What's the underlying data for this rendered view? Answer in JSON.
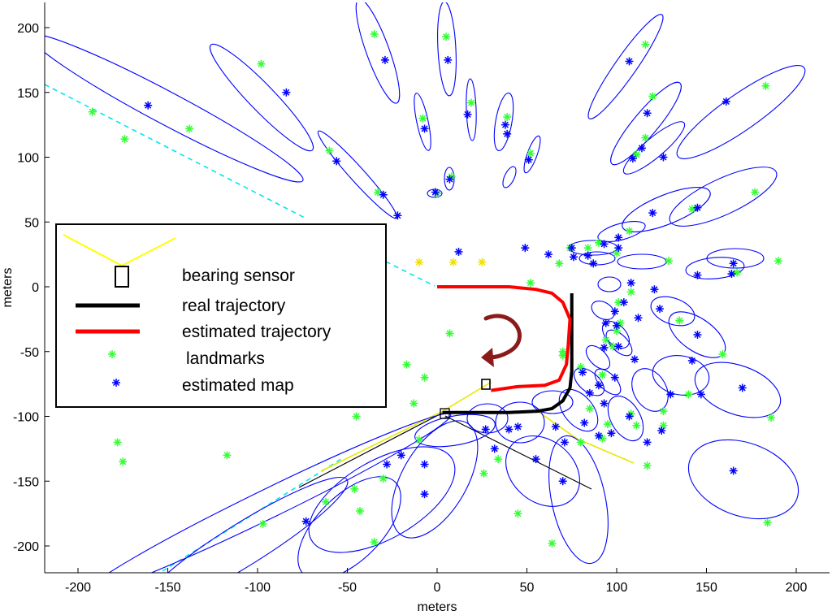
{
  "chart_data": {
    "type": "scatter",
    "title": "",
    "xlabel": "meters",
    "ylabel": "meters",
    "xlim": [
      -220,
      220
    ],
    "ylim": [
      -222,
      222
    ],
    "xticks": [
      -200,
      -150,
      -100,
      -50,
      0,
      50,
      100,
      150,
      200
    ],
    "yticks": [
      200,
      150,
      100,
      50,
      0,
      -50,
      -100,
      -150,
      -200
    ],
    "legend": {
      "placement": "left",
      "entries": [
        {
          "label": "bearing sensor",
          "color": "#000000",
          "accent": "#ffff00"
        },
        {
          "label": "real trajectory",
          "color": "#000000"
        },
        {
          "label": "estimated trajectory",
          "color": "#ff0000"
        },
        {
          "label": "landmarks",
          "color": "#33ff33"
        },
        {
          "label": "estimated map",
          "color": "#0000ff"
        }
      ]
    },
    "series": [
      {
        "name": "landmarks",
        "marker": "*",
        "color": "#33ff33",
        "points": [
          [
            -192,
            135
          ],
          [
            -174,
            114
          ],
          [
            -138,
            122
          ],
          [
            -98,
            172
          ],
          [
            -60,
            105
          ],
          [
            -33,
            73
          ],
          [
            -35,
            195
          ],
          [
            5,
            193
          ],
          [
            19,
            142
          ],
          [
            39,
            131
          ],
          [
            52,
            103
          ],
          [
            -8,
            130
          ],
          [
            8,
            85
          ],
          [
            0,
            72
          ],
          [
            52,
            3
          ],
          [
            7,
            -36
          ],
          [
            -17,
            -60
          ],
          [
            -7,
            -70
          ],
          [
            -13,
            -90
          ],
          [
            -45,
            -100
          ],
          [
            -10,
            -118
          ],
          [
            -117,
            -130
          ],
          [
            -178,
            -120
          ],
          [
            -175,
            -135
          ],
          [
            -97,
            -183
          ],
          [
            -62,
            -166
          ],
          [
            -46,
            -156
          ],
          [
            -43,
            -173
          ],
          [
            -35,
            -197
          ],
          [
            -30,
            -148
          ],
          [
            34,
            -133
          ],
          [
            26,
            -144
          ],
          [
            45,
            -175
          ],
          [
            64,
            -198
          ],
          [
            80,
            -120
          ],
          [
            85,
            -94
          ],
          [
            92,
            -117
          ],
          [
            95,
            -106
          ],
          [
            108,
            -98
          ],
          [
            111,
            -107
          ],
          [
            117,
            -138
          ],
          [
            126,
            -96
          ],
          [
            126,
            -107
          ],
          [
            140,
            -83
          ],
          [
            159,
            -52
          ],
          [
            184,
            -182
          ],
          [
            186,
            -101
          ],
          [
            190,
            20
          ],
          [
            167,
            11
          ],
          [
            177,
            73
          ],
          [
            142,
            60
          ],
          [
            129,
            20
          ],
          [
            108,
            -4
          ],
          [
            101,
            -12
          ],
          [
            135,
            -26
          ],
          [
            98,
            -46
          ],
          [
            94,
            -41
          ],
          [
            92,
            -68
          ],
          [
            80,
            -62
          ],
          [
            100,
            -34
          ],
          [
            102,
            -28
          ],
          [
            107,
            43
          ],
          [
            90,
            34
          ],
          [
            84,
            30
          ],
          [
            74,
            30
          ],
          [
            68,
            18
          ],
          [
            70,
            -53
          ],
          [
            70,
            -50
          ],
          [
            100,
            26
          ],
          [
            116,
            187
          ],
          [
            183,
            155
          ],
          [
            120,
            147
          ],
          [
            116,
            115
          ],
          [
            111,
            102
          ]
        ]
      },
      {
        "name": "estimated map",
        "marker": "*",
        "color": "#0000ff",
        "points": [
          [
            -161,
            140
          ],
          [
            -84,
            150
          ],
          [
            -56,
            97
          ],
          [
            -30,
            71
          ],
          [
            -22,
            55
          ],
          [
            -29,
            175
          ],
          [
            6,
            175
          ],
          [
            17,
            133
          ],
          [
            38,
            125
          ],
          [
            39,
            118
          ],
          [
            51,
            98
          ],
          [
            -7,
            122
          ],
          [
            7,
            83
          ],
          [
            -1,
            73
          ],
          [
            49,
            30
          ],
          [
            12,
            27
          ],
          [
            -20,
            -130
          ],
          [
            -7,
            -137
          ],
          [
            -7,
            -160
          ],
          [
            -73,
            -181
          ],
          [
            -28,
            -137
          ],
          [
            27,
            -110
          ],
          [
            32,
            -125
          ],
          [
            55,
            -133
          ],
          [
            45,
            -108
          ],
          [
            66,
            -108
          ],
          [
            40,
            -110
          ],
          [
            71,
            -120
          ],
          [
            70,
            -150
          ],
          [
            82,
            -105
          ],
          [
            90,
            -115
          ],
          [
            97,
            -113
          ],
          [
            107,
            -100
          ],
          [
            117,
            -120
          ],
          [
            125,
            -111
          ],
          [
            130,
            -83
          ],
          [
            142,
            -57
          ],
          [
            170,
            -78
          ],
          [
            165,
            -142
          ],
          [
            147,
            -83
          ],
          [
            145,
            -37
          ],
          [
            124,
            -17
          ],
          [
            94,
            -28
          ],
          [
            93,
            -47
          ],
          [
            90,
            -76
          ],
          [
            81,
            -66
          ],
          [
            85,
            -82
          ],
          [
            93,
            -90
          ],
          [
            99,
            -19
          ],
          [
            100,
            -30
          ],
          [
            110,
            -56
          ],
          [
            99,
            -70
          ],
          [
            101,
            -46
          ],
          [
            121,
            -2
          ],
          [
            164,
            10
          ],
          [
            165,
            18
          ],
          [
            145,
            9
          ],
          [
            145,
            61
          ],
          [
            120,
            57
          ],
          [
            101,
            30
          ],
          [
            93,
            33
          ],
          [
            75,
            30
          ],
          [
            84,
            24
          ],
          [
            87,
            18
          ],
          [
            104,
            -12
          ],
          [
            112,
            -24
          ],
          [
            108,
            3
          ],
          [
            101,
            38
          ],
          [
            107,
            174
          ],
          [
            161,
            143
          ],
          [
            117,
            134
          ],
          [
            126,
            100
          ],
          [
            114,
            107
          ],
          [
            109,
            99
          ],
          [
            76,
            23
          ],
          [
            62,
            25
          ]
        ]
      },
      {
        "name": "real trajectory",
        "color": "#000000",
        "points": [
          [
            3,
            -97
          ],
          [
            20,
            -97
          ],
          [
            40,
            -97
          ],
          [
            56,
            -96
          ],
          [
            64,
            -94
          ],
          [
            70,
            -88
          ],
          [
            74,
            -78
          ],
          [
            75,
            -65
          ],
          [
            75,
            -40
          ],
          [
            75,
            -15
          ],
          [
            75,
            -5
          ]
        ]
      },
      {
        "name": "estimated trajectory",
        "color": "#ff0000",
        "points": [
          [
            0,
            0
          ],
          [
            20,
            0
          ],
          [
            40,
            0
          ],
          [
            55,
            -2
          ],
          [
            64,
            -5
          ],
          [
            70,
            -12
          ],
          [
            74,
            -25
          ],
          [
            73,
            -45
          ],
          [
            72,
            -60
          ],
          [
            68,
            -72
          ],
          [
            60,
            -76
          ],
          [
            45,
            -77
          ],
          [
            30,
            -80
          ]
        ]
      }
    ]
  }
}
